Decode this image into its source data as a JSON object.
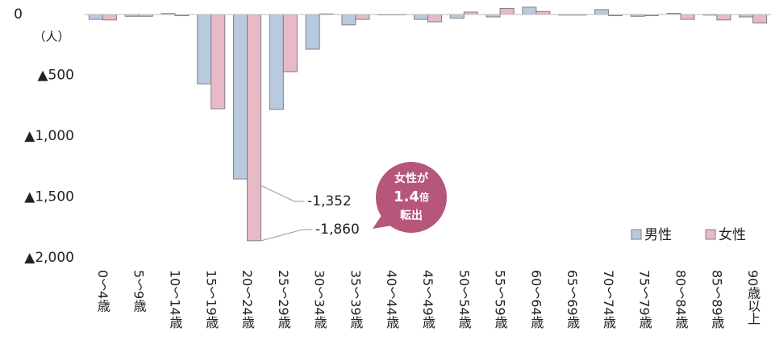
{
  "chart_data": {
    "type": "bar",
    "unit_label": "（人）",
    "categories": [
      "0～4歳",
      "5～9歳",
      "10～14歳",
      "15～19歳",
      "20～24歳",
      "25～29歳",
      "30～34歳",
      "35～39歳",
      "40～44歳",
      "45～49歳",
      "50～54歳",
      "55～59歳",
      "60～64歳",
      "65～69歳",
      "70～74歳",
      "75～79歳",
      "80～84歳",
      "85～89歳",
      "90歳以上"
    ],
    "series": [
      {
        "name": "男性",
        "color": "#b9cadf",
        "values": [
          -40,
          -15,
          8,
          -570,
          -1352,
          -780,
          -285,
          -85,
          -3,
          -40,
          -30,
          -20,
          60,
          -5,
          40,
          -15,
          10,
          -5,
          -20
        ],
        "value_labels": [
          null,
          null,
          null,
          null,
          "-1,352",
          null,
          null,
          null,
          null,
          null,
          null,
          null,
          null,
          null,
          null,
          null,
          null,
          null,
          null
        ]
      },
      {
        "name": "女性",
        "color": "#e8b9c7",
        "values": [
          -45,
          -15,
          -10,
          -775,
          -1860,
          -470,
          5,
          -40,
          -3,
          -60,
          20,
          50,
          25,
          -5,
          -10,
          -10,
          -40,
          -45,
          -70
        ],
        "value_labels": [
          null,
          null,
          null,
          null,
          "-1,860",
          null,
          null,
          null,
          null,
          null,
          null,
          null,
          null,
          null,
          null,
          null,
          null,
          null,
          null
        ]
      }
    ],
    "callout": {
      "line1": "女性が",
      "ratio": "1.4",
      "ratio_unit": "倍",
      "line3": "転出"
    },
    "ylim": [
      -2000,
      0
    ],
    "yticks": [
      0,
      {
        "value": -500,
        "label": "▲500"
      },
      {
        "value": -1000,
        "label": "▲1,000"
      },
      {
        "value": -1500,
        "label": "▲1,500"
      },
      {
        "value": -2000,
        "label": "▲2,000"
      }
    ],
    "grid": false,
    "legend": "lower right"
  }
}
